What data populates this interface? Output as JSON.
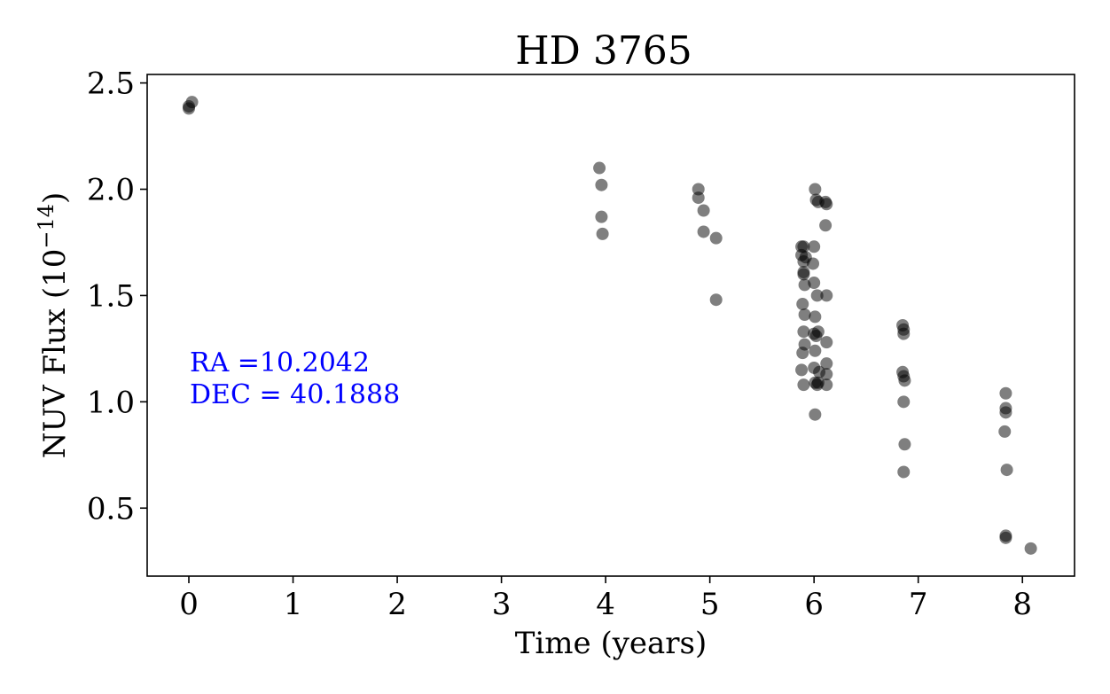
{
  "chart_data": {
    "type": "scatter",
    "title": "HD   3765",
    "xlabel": "Time (years)",
    "ylabel": "NUV Flux (10",
    "ylabel_exp": "−14",
    "ylabel_close": ")",
    "xlim": [
      -0.4,
      8.5
    ],
    "ylim": [
      0.18,
      2.54
    ],
    "xticks": [
      0,
      1,
      2,
      3,
      4,
      5,
      6,
      7,
      8
    ],
    "yticks": [
      0.5,
      1.0,
      1.5,
      2.0,
      2.5
    ],
    "xtick_labels": [
      "0",
      "1",
      "2",
      "3",
      "4",
      "5",
      "6",
      "7",
      "8"
    ],
    "ytick_labels": [
      "0.5",
      "1.0",
      "1.5",
      "2.0",
      "2.5"
    ],
    "grid": false,
    "marker_color": "#000000",
    "annotation_color": "#0000ff",
    "annotations": [
      "RA =10.2042",
      "DEC = 40.1888"
    ],
    "points": [
      {
        "x": 0.0,
        "y": 2.38
      },
      {
        "x": 0.0,
        "y": 2.39
      },
      {
        "x": 0.03,
        "y": 2.41
      },
      {
        "x": 3.94,
        "y": 2.1
      },
      {
        "x": 3.96,
        "y": 2.02
      },
      {
        "x": 3.96,
        "y": 1.87
      },
      {
        "x": 3.97,
        "y": 1.79
      },
      {
        "x": 4.89,
        "y": 2.0
      },
      {
        "x": 4.89,
        "y": 1.96
      },
      {
        "x": 4.94,
        "y": 1.9
      },
      {
        "x": 4.94,
        "y": 1.8
      },
      {
        "x": 5.06,
        "y": 1.77
      },
      {
        "x": 5.06,
        "y": 1.48
      },
      {
        "x": 5.88,
        "y": 1.73
      },
      {
        "x": 5.9,
        "y": 1.73
      },
      {
        "x": 5.88,
        "y": 1.69
      },
      {
        "x": 5.9,
        "y": 1.66
      },
      {
        "x": 5.92,
        "y": 1.68
      },
      {
        "x": 5.9,
        "y": 1.6
      },
      {
        "x": 5.9,
        "y": 1.61
      },
      {
        "x": 5.91,
        "y": 1.55
      },
      {
        "x": 5.89,
        "y": 1.46
      },
      {
        "x": 5.91,
        "y": 1.41
      },
      {
        "x": 5.9,
        "y": 1.33
      },
      {
        "x": 5.91,
        "y": 1.27
      },
      {
        "x": 5.89,
        "y": 1.23
      },
      {
        "x": 5.88,
        "y": 1.15
      },
      {
        "x": 5.9,
        "y": 1.08
      },
      {
        "x": 6.01,
        "y": 2.0
      },
      {
        "x": 6.02,
        "y": 1.95
      },
      {
        "x": 6.04,
        "y": 1.94
      },
      {
        "x": 6.11,
        "y": 1.94
      },
      {
        "x": 6.12,
        "y": 1.93
      },
      {
        "x": 6.11,
        "y": 1.83
      },
      {
        "x": 6.0,
        "y": 1.73
      },
      {
        "x": 5.99,
        "y": 1.65
      },
      {
        "x": 6.0,
        "y": 1.56
      },
      {
        "x": 6.03,
        "y": 1.5
      },
      {
        "x": 6.12,
        "y": 1.5
      },
      {
        "x": 6.01,
        "y": 1.4
      },
      {
        "x": 6.0,
        "y": 1.32
      },
      {
        "x": 6.02,
        "y": 1.31
      },
      {
        "x": 6.04,
        "y": 1.33
      },
      {
        "x": 6.12,
        "y": 1.28
      },
      {
        "x": 6.01,
        "y": 1.24
      },
      {
        "x": 6.12,
        "y": 1.18
      },
      {
        "x": 6.0,
        "y": 1.16
      },
      {
        "x": 6.05,
        "y": 1.14
      },
      {
        "x": 6.12,
        "y": 1.13
      },
      {
        "x": 6.01,
        "y": 1.09
      },
      {
        "x": 6.03,
        "y": 1.08
      },
      {
        "x": 6.04,
        "y": 1.09
      },
      {
        "x": 6.12,
        "y": 1.08
      },
      {
        "x": 6.01,
        "y": 0.94
      },
      {
        "x": 6.85,
        "y": 1.36
      },
      {
        "x": 6.86,
        "y": 1.34
      },
      {
        "x": 6.86,
        "y": 1.32
      },
      {
        "x": 6.85,
        "y": 1.14
      },
      {
        "x": 6.86,
        "y": 1.12
      },
      {
        "x": 6.87,
        "y": 1.1
      },
      {
        "x": 6.86,
        "y": 1.0
      },
      {
        "x": 6.87,
        "y": 0.8
      },
      {
        "x": 6.86,
        "y": 0.67
      },
      {
        "x": 7.84,
        "y": 1.04
      },
      {
        "x": 7.84,
        "y": 0.97
      },
      {
        "x": 7.84,
        "y": 0.95
      },
      {
        "x": 7.83,
        "y": 0.86
      },
      {
        "x": 7.85,
        "y": 0.68
      },
      {
        "x": 7.84,
        "y": 0.37
      },
      {
        "x": 7.84,
        "y": 0.36
      },
      {
        "x": 8.08,
        "y": 0.31
      }
    ]
  }
}
